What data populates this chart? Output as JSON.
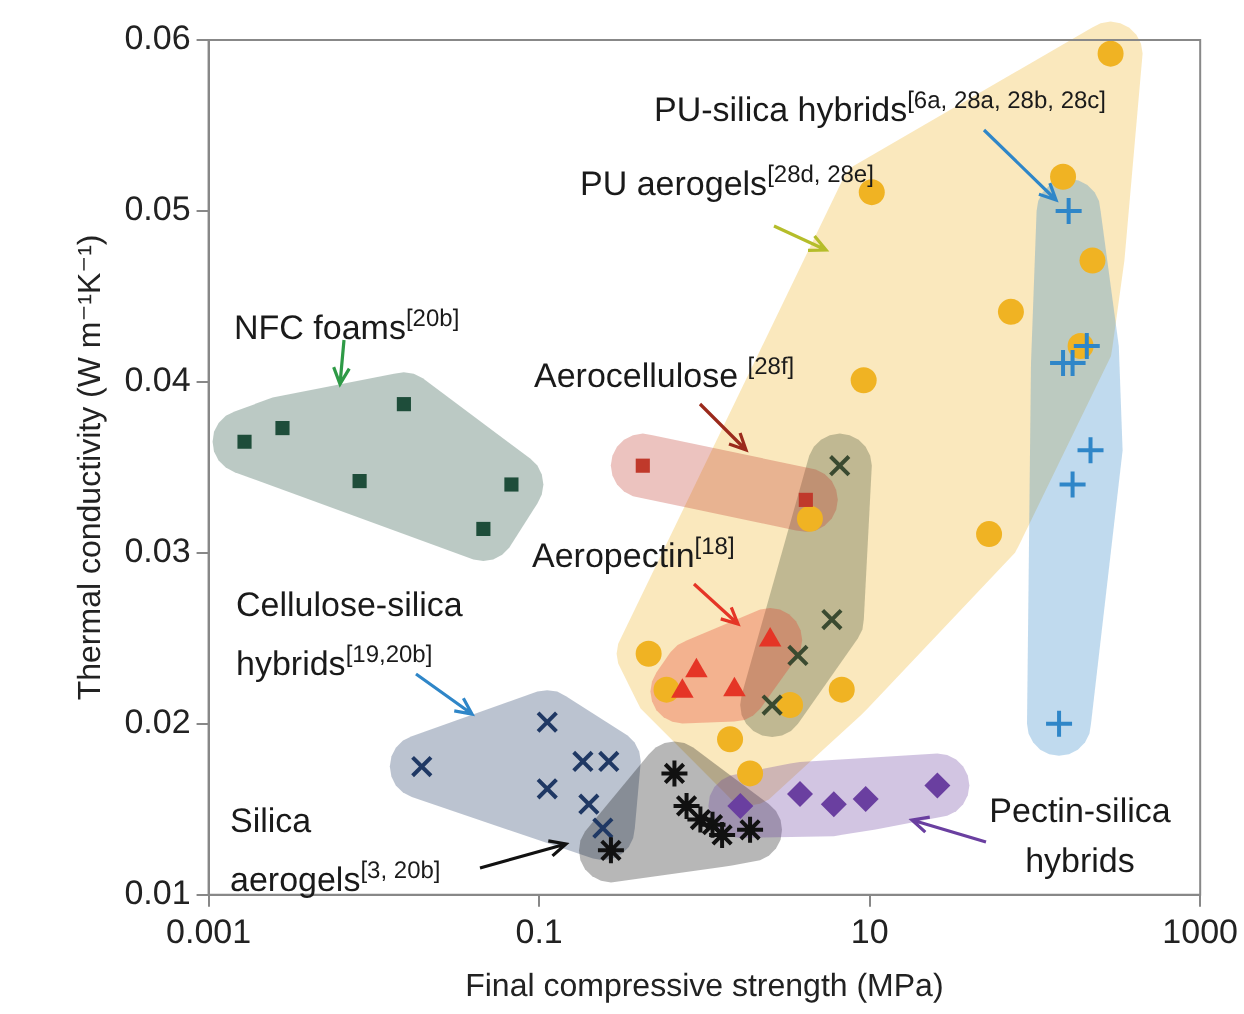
{
  "chart_data": {
    "type": "scatter",
    "xlabel": "Final compressive strength (MPa)",
    "ylabel": "Thermal conductivity (W m⁻¹K⁻¹)",
    "log": "x",
    "xlim": [
      0.001,
      1000
    ],
    "xticks": [
      0.001,
      0.1,
      10,
      1000
    ],
    "ylim": [
      0.01,
      0.06
    ],
    "yticks": [
      0.01,
      0.02,
      0.03,
      0.04,
      0.05,
      0.06
    ],
    "grid": false,
    "legend": false,
    "series": [
      {
        "color": "#1e4d3a",
        "marker": "square",
        "x": [
          0.00165,
          0.0028,
          0.0082,
          0.0152,
          0.046,
          0.068
        ],
        "values": [
          0.0365,
          0.0373,
          0.0342,
          0.0387,
          0.0314,
          0.034
        ]
      },
      {
        "color": "#f0b323",
        "marker": "circle",
        "x": [
          10.3,
          71.6,
          9.2,
          287,
          148,
          223,
          189,
          52.8,
          6.78,
          4.35,
          3.3,
          1.89,
          1.43,
          0.46,
          0.59
        ],
        "values": [
          0.0511,
          0.0441,
          0.0401,
          0.0592,
          0.052,
          0.0471,
          0.0421,
          0.0311,
          0.022,
          0.032,
          0.0211,
          0.0171,
          0.0191,
          0.0241,
          0.022
        ]
      },
      {
        "color": "#2f86c8",
        "marker": "plus",
        "x": [
          160,
          148,
          169,
          206,
          217,
          169,
          140
        ],
        "values": [
          0.05,
          0.0411,
          0.0411,
          0.0421,
          0.036,
          0.034,
          0.02
        ]
      },
      {
        "color": "#3a4a30",
        "marker": "x",
        "x": [
          6.59,
          5.91,
          3.68,
          2.57
        ],
        "values": [
          0.0351,
          0.0261,
          0.024,
          0.0211
        ]
      },
      {
        "color": "#1f3864",
        "marker": "x",
        "x": [
          0.0195,
          0.112,
          0.112,
          0.184,
          0.264,
          0.2,
          0.243
        ],
        "values": [
          0.0175,
          0.0201,
          0.0162,
          0.0178,
          0.0178,
          0.0153,
          0.0139
        ]
      },
      {
        "color": "#111111",
        "marker": "cross",
        "x": [
          0.272,
          0.659,
          0.78,
          0.946,
          1.12,
          1.28,
          1.89
        ],
        "values": [
          0.0126,
          0.0171,
          0.0152,
          0.0144,
          0.0141,
          0.0135,
          0.0138
        ]
      },
      {
        "color": "#c0392b",
        "marker": "square",
        "x": [
          0.424,
          4.11
        ],
        "values": [
          0.0351,
          0.0331
        ]
      },
      {
        "color": "#e53526",
        "marker": "triangle",
        "x": [
          0.736,
          0.895,
          1.52,
          2.5
        ],
        "values": [
          0.0219,
          0.0231,
          0.022,
          0.0249
        ]
      },
      {
        "color": "#6a3fa0",
        "marker": "diamond",
        "x": [
          1.65,
          3.79,
          6.07,
          9.46,
          25.7
        ],
        "values": [
          0.0152,
          0.0159,
          0.0153,
          0.0156,
          0.0164
        ]
      }
    ],
    "annotations": [
      "PU-silica hybrids$^{[6a, 28a, 28b, 28c]}$",
      "PU aerogels$^{[28d, 28e]}$",
      "NFC foams$^{[20b]}$",
      "Aerocellulose $^{[28f]}$",
      "Aeropectin$^{[18]}$",
      "Cellulose-silica hybrids$^{[19,20b]}$",
      "Silica aerogels$^{[3, 20b]}$",
      "Pectin-silica hybrids"
    ]
  }
}
